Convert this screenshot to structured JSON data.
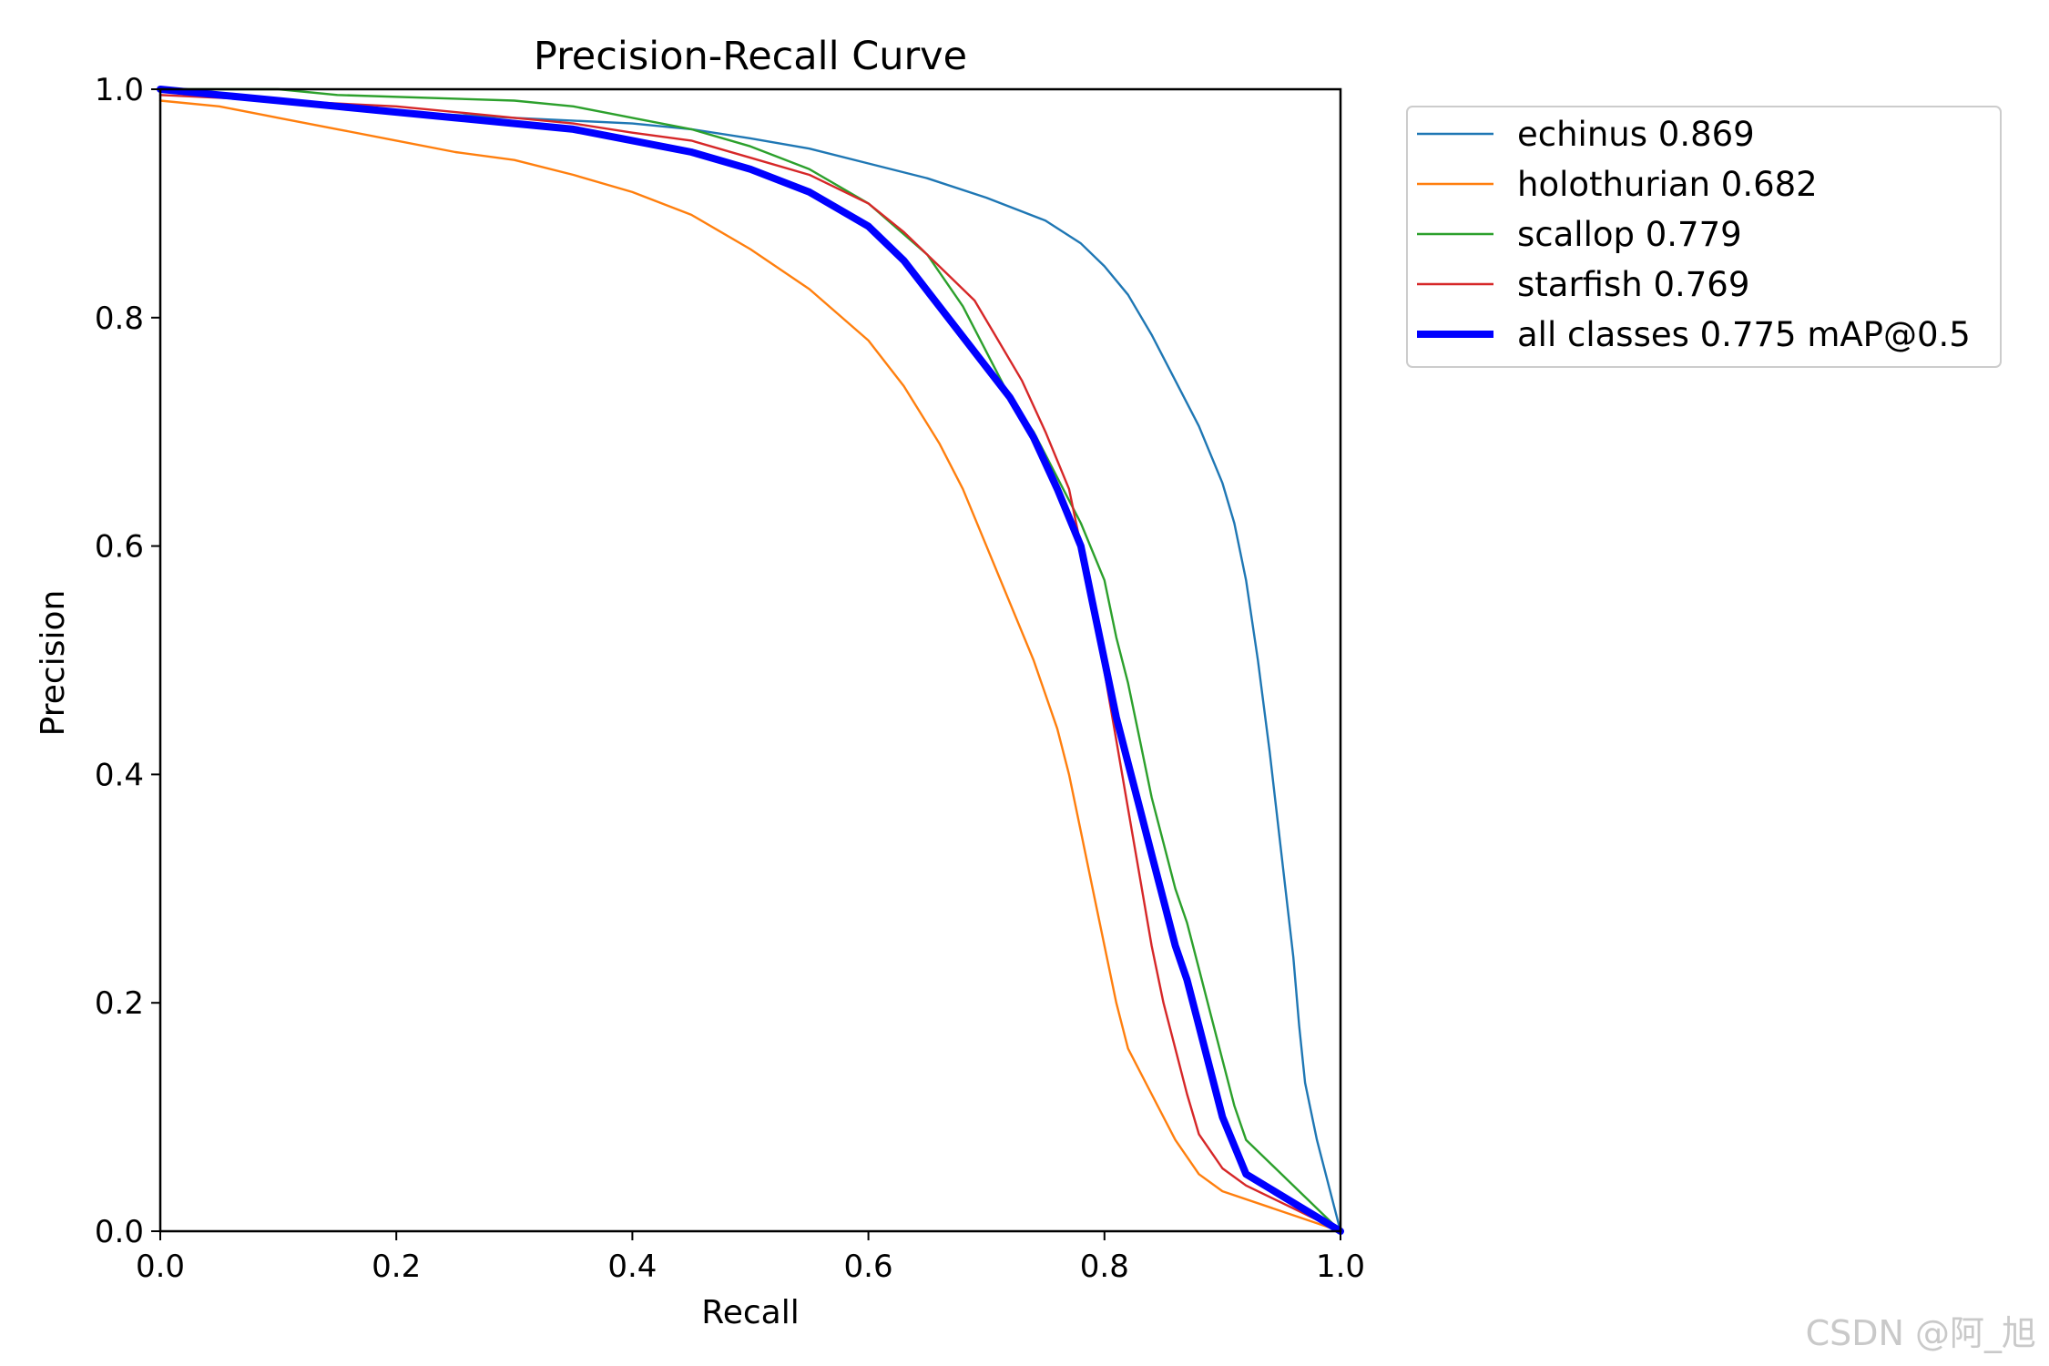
{
  "chart_data": {
    "type": "line",
    "title": "Precision-Recall Curve",
    "xlabel": "Recall",
    "ylabel": "Precision",
    "xlim": [
      0,
      1
    ],
    "ylim": [
      0,
      1
    ],
    "xticks": [
      "0.0",
      "0.2",
      "0.4",
      "0.6",
      "0.8",
      "1.0"
    ],
    "yticks": [
      "0.0",
      "0.2",
      "0.4",
      "0.6",
      "0.8",
      "1.0"
    ],
    "grid": false,
    "legend_position": "outside-right-top",
    "series": [
      {
        "name": "echinus 0.869",
        "color": "#1f77b4",
        "stroke": "thin",
        "points": [
          [
            0,
            1.0
          ],
          [
            0.05,
            0.995
          ],
          [
            0.1,
            0.99
          ],
          [
            0.2,
            0.98
          ],
          [
            0.3,
            0.975
          ],
          [
            0.4,
            0.97
          ],
          [
            0.45,
            0.965
          ],
          [
            0.5,
            0.957
          ],
          [
            0.55,
            0.948
          ],
          [
            0.6,
            0.935
          ],
          [
            0.65,
            0.922
          ],
          [
            0.7,
            0.905
          ],
          [
            0.75,
            0.885
          ],
          [
            0.78,
            0.865
          ],
          [
            0.8,
            0.845
          ],
          [
            0.82,
            0.82
          ],
          [
            0.84,
            0.785
          ],
          [
            0.86,
            0.745
          ],
          [
            0.88,
            0.705
          ],
          [
            0.9,
            0.655
          ],
          [
            0.91,
            0.62
          ],
          [
            0.92,
            0.57
          ],
          [
            0.93,
            0.5
          ],
          [
            0.94,
            0.42
          ],
          [
            0.95,
            0.33
          ],
          [
            0.96,
            0.24
          ],
          [
            0.965,
            0.18
          ],
          [
            0.97,
            0.13
          ],
          [
            0.98,
            0.08
          ],
          [
            1.0,
            0.0
          ]
        ]
      },
      {
        "name": "holothurian 0.682",
        "color": "#ff7f0e",
        "stroke": "thin",
        "points": [
          [
            0,
            0.99
          ],
          [
            0.05,
            0.985
          ],
          [
            0.1,
            0.975
          ],
          [
            0.15,
            0.965
          ],
          [
            0.2,
            0.955
          ],
          [
            0.25,
            0.945
          ],
          [
            0.3,
            0.938
          ],
          [
            0.35,
            0.925
          ],
          [
            0.4,
            0.91
          ],
          [
            0.45,
            0.89
          ],
          [
            0.5,
            0.86
          ],
          [
            0.55,
            0.825
          ],
          [
            0.6,
            0.78
          ],
          [
            0.63,
            0.74
          ],
          [
            0.66,
            0.69
          ],
          [
            0.68,
            0.65
          ],
          [
            0.7,
            0.6
          ],
          [
            0.72,
            0.55
          ],
          [
            0.74,
            0.5
          ],
          [
            0.76,
            0.44
          ],
          [
            0.77,
            0.4
          ],
          [
            0.78,
            0.35
          ],
          [
            0.79,
            0.3
          ],
          [
            0.8,
            0.25
          ],
          [
            0.81,
            0.2
          ],
          [
            0.82,
            0.16
          ],
          [
            0.84,
            0.12
          ],
          [
            0.86,
            0.08
          ],
          [
            0.88,
            0.05
          ],
          [
            0.9,
            0.035
          ],
          [
            1.0,
            0.0
          ]
        ]
      },
      {
        "name": "scallop 0.779",
        "color": "#2ca02c",
        "stroke": "thin",
        "points": [
          [
            0,
            1.0
          ],
          [
            0.1,
            1.0
          ],
          [
            0.15,
            0.995
          ],
          [
            0.3,
            0.99
          ],
          [
            0.35,
            0.985
          ],
          [
            0.4,
            0.975
          ],
          [
            0.45,
            0.965
          ],
          [
            0.5,
            0.95
          ],
          [
            0.55,
            0.93
          ],
          [
            0.6,
            0.9
          ],
          [
            0.65,
            0.855
          ],
          [
            0.68,
            0.81
          ],
          [
            0.7,
            0.77
          ],
          [
            0.72,
            0.73
          ],
          [
            0.74,
            0.7
          ],
          [
            0.76,
            0.66
          ],
          [
            0.78,
            0.62
          ],
          [
            0.8,
            0.57
          ],
          [
            0.81,
            0.52
          ],
          [
            0.82,
            0.48
          ],
          [
            0.83,
            0.43
          ],
          [
            0.84,
            0.38
          ],
          [
            0.85,
            0.34
          ],
          [
            0.86,
            0.3
          ],
          [
            0.87,
            0.27
          ],
          [
            0.88,
            0.23
          ],
          [
            0.89,
            0.19
          ],
          [
            0.9,
            0.15
          ],
          [
            0.91,
            0.11
          ],
          [
            0.92,
            0.08
          ],
          [
            1.0,
            0.0
          ]
        ]
      },
      {
        "name": "starfish 0.769",
        "color": "#d62728",
        "stroke": "thin",
        "points": [
          [
            0,
            0.995
          ],
          [
            0.1,
            0.99
          ],
          [
            0.2,
            0.985
          ],
          [
            0.3,
            0.975
          ],
          [
            0.35,
            0.97
          ],
          [
            0.4,
            0.962
          ],
          [
            0.45,
            0.955
          ],
          [
            0.5,
            0.94
          ],
          [
            0.55,
            0.925
          ],
          [
            0.6,
            0.9
          ],
          [
            0.63,
            0.875
          ],
          [
            0.66,
            0.845
          ],
          [
            0.69,
            0.815
          ],
          [
            0.71,
            0.78
          ],
          [
            0.73,
            0.745
          ],
          [
            0.75,
            0.7
          ],
          [
            0.77,
            0.65
          ],
          [
            0.78,
            0.6
          ],
          [
            0.79,
            0.55
          ],
          [
            0.8,
            0.49
          ],
          [
            0.81,
            0.43
          ],
          [
            0.82,
            0.37
          ],
          [
            0.83,
            0.31
          ],
          [
            0.84,
            0.25
          ],
          [
            0.85,
            0.2
          ],
          [
            0.86,
            0.16
          ],
          [
            0.87,
            0.12
          ],
          [
            0.88,
            0.085
          ],
          [
            0.9,
            0.055
          ],
          [
            0.92,
            0.04
          ],
          [
            1.0,
            0.0
          ]
        ]
      },
      {
        "name": "all classes 0.775 mAP@0.5",
        "color": "#0000ff",
        "stroke": "thick",
        "points": [
          [
            0,
            1.0
          ],
          [
            0.05,
            0.995
          ],
          [
            0.1,
            0.99
          ],
          [
            0.15,
            0.985
          ],
          [
            0.2,
            0.98
          ],
          [
            0.25,
            0.975
          ],
          [
            0.3,
            0.97
          ],
          [
            0.35,
            0.965
          ],
          [
            0.4,
            0.955
          ],
          [
            0.45,
            0.945
          ],
          [
            0.5,
            0.93
          ],
          [
            0.55,
            0.91
          ],
          [
            0.6,
            0.88
          ],
          [
            0.63,
            0.85
          ],
          [
            0.66,
            0.81
          ],
          [
            0.69,
            0.77
          ],
          [
            0.72,
            0.73
          ],
          [
            0.74,
            0.695
          ],
          [
            0.76,
            0.65
          ],
          [
            0.78,
            0.6
          ],
          [
            0.79,
            0.55
          ],
          [
            0.8,
            0.5
          ],
          [
            0.81,
            0.45
          ],
          [
            0.82,
            0.41
          ],
          [
            0.83,
            0.37
          ],
          [
            0.84,
            0.33
          ],
          [
            0.85,
            0.29
          ],
          [
            0.86,
            0.25
          ],
          [
            0.87,
            0.22
          ],
          [
            0.88,
            0.18
          ],
          [
            0.89,
            0.14
          ],
          [
            0.9,
            0.1
          ],
          [
            0.92,
            0.05
          ],
          [
            1.0,
            0.0
          ]
        ]
      }
    ]
  },
  "watermark": "CSDN @阿_旭"
}
